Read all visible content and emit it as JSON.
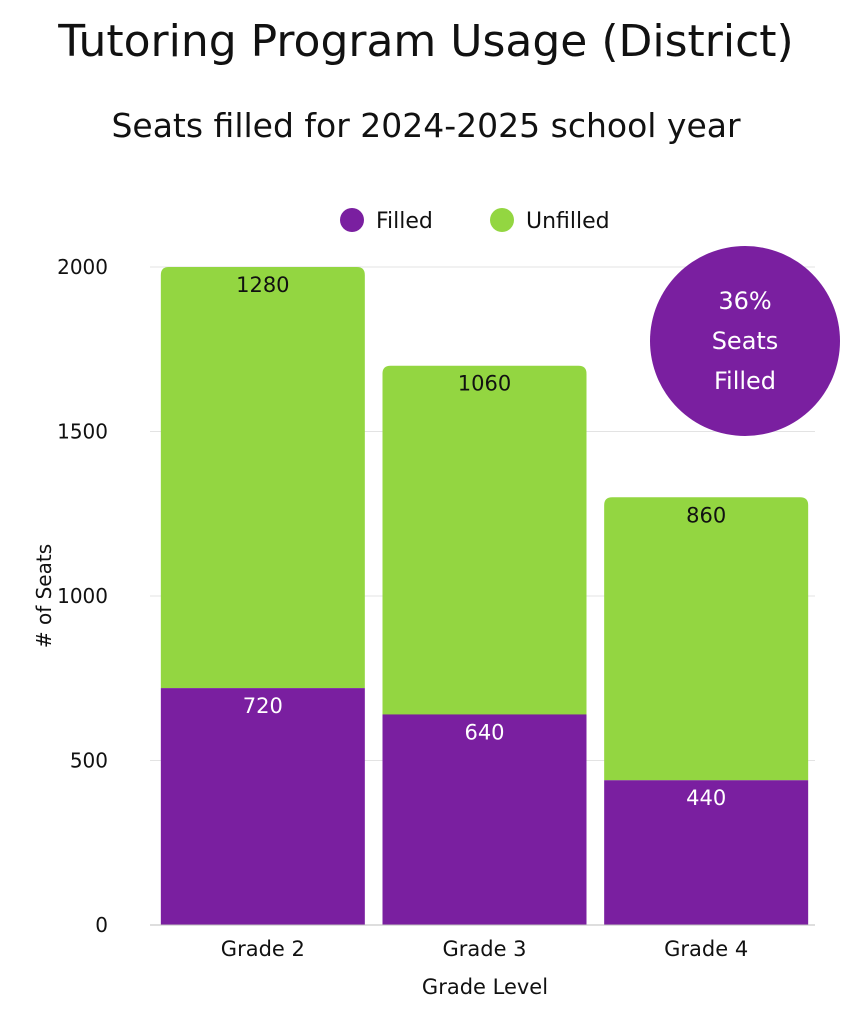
{
  "title": "Tutoring Program Usage (District)",
  "subtitle": "Seats filled for 2024-2025 school year",
  "callout": {
    "value": "36%",
    "line1": "Seats",
    "line2": "Filled"
  },
  "colors": {
    "filled": "#7a1fa0",
    "unfilled": "#93d641",
    "grid": "#e3e3e3",
    "text": "#111111"
  },
  "chart_data": {
    "type": "bar",
    "stacked": true,
    "categories": [
      "Grade 2",
      "Grade 3",
      "Grade 4"
    ],
    "series": [
      {
        "name": "Filled",
        "values": [
          720,
          640,
          440
        ],
        "color": "#7a1fa0"
      },
      {
        "name": "Unfilled",
        "values": [
          1280,
          1060,
          860
        ],
        "color": "#93d641"
      }
    ],
    "xlabel": "Grade Level",
    "ylabel": "# of Seats",
    "ylim": [
      0,
      2000
    ],
    "yticks": [
      0,
      500,
      1000,
      1500,
      2000
    ],
    "grid": true,
    "legend": "top"
  }
}
